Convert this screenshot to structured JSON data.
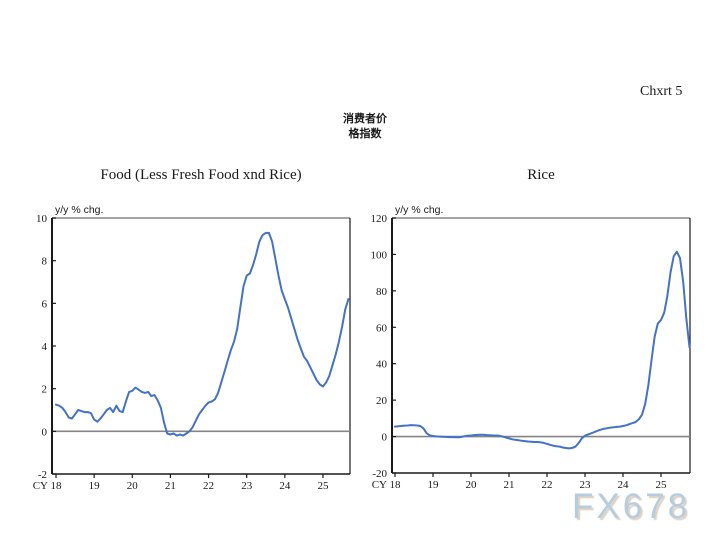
{
  "page": {
    "corner_label": "Chxrt 5",
    "header_line1": "消费者价",
    "header_line2": "格指数",
    "watermark": "FX678",
    "line_color": "#4472C4",
    "axis_color": "#1a1a1a",
    "gridline_color": "#858585"
  },
  "chart_data": [
    {
      "type": "line",
      "title": "Food (Less Fresh Food xnd Rice)",
      "unit_label": "y/y % chg.",
      "x_axis_prefix": "CY",
      "x_tick_labels": [
        "18",
        "19",
        "20",
        "21",
        "22",
        "23",
        "24",
        "25"
      ],
      "y_tick_values": [
        10,
        8,
        6,
        4,
        2,
        0,
        -2
      ],
      "ylim": [
        -2,
        10
      ],
      "x_start_year": 2018,
      "frequency": "monthly",
      "legend": "none",
      "grid": "zero-line-only",
      "values": [
        1.25,
        1.2,
        1.1,
        0.9,
        0.65,
        0.6,
        0.8,
        1.0,
        0.95,
        0.9,
        0.9,
        0.85,
        0.55,
        0.45,
        0.6,
        0.8,
        1.0,
        1.1,
        0.9,
        1.2,
        0.95,
        0.9,
        1.4,
        1.85,
        1.9,
        2.05,
        1.95,
        1.85,
        1.8,
        1.85,
        1.65,
        1.7,
        1.45,
        1.1,
        0.4,
        -0.1,
        -0.15,
        -0.1,
        -0.2,
        -0.15,
        -0.2,
        -0.1,
        0.0,
        0.2,
        0.5,
        0.8,
        1.0,
        1.2,
        1.35,
        1.4,
        1.5,
        1.8,
        2.3,
        2.8,
        3.3,
        3.8,
        4.2,
        4.8,
        5.8,
        6.8,
        7.3,
        7.4,
        7.8,
        8.3,
        8.9,
        9.2,
        9.3,
        9.3,
        8.9,
        8.1,
        7.3,
        6.6,
        6.2,
        5.8,
        5.3,
        4.8,
        4.3,
        3.9,
        3.5,
        3.3,
        3.0,
        2.7,
        2.4,
        2.2,
        2.1,
        2.3,
        2.6,
        3.1,
        3.6,
        4.2,
        4.9,
        5.7,
        6.2
      ]
    },
    {
      "type": "line",
      "title": "Rice",
      "unit_label": "y/y % chg.",
      "x_axis_prefix": "CY",
      "x_tick_labels": [
        "18",
        "19",
        "20",
        "21",
        "22",
        "23",
        "24",
        "25"
      ],
      "y_tick_values": [
        120,
        100,
        80,
        60,
        40,
        20,
        0,
        -20
      ],
      "ylim": [
        -20,
        120
      ],
      "x_start_year": 2018,
      "frequency": "monthly",
      "legend": "none",
      "grid": "zero-line-only",
      "values": [
        5.5,
        5.7,
        5.8,
        6.0,
        6.1,
        6.3,
        6.2,
        6.1,
        5.8,
        4.5,
        1.8,
        0.7,
        0.3,
        0.1,
        0.0,
        -0.1,
        -0.2,
        -0.3,
        -0.3,
        -0.4,
        -0.4,
        -0.2,
        0.2,
        0.5,
        0.6,
        0.8,
        0.9,
        1.0,
        1.0,
        0.8,
        0.7,
        0.6,
        0.6,
        0.4,
        0.0,
        -0.5,
        -1.0,
        -1.5,
        -1.8,
        -2.0,
        -2.3,
        -2.5,
        -2.7,
        -2.8,
        -3.0,
        -3.0,
        -3.2,
        -3.5,
        -4.0,
        -4.5,
        -5.0,
        -5.3,
        -5.5,
        -6.0,
        -6.3,
        -6.5,
        -6.2,
        -5.5,
        -3.5,
        -1.0,
        0.5,
        1.2,
        1.8,
        2.5,
        3.2,
        3.8,
        4.3,
        4.6,
        4.9,
        5.1,
        5.3,
        5.5,
        5.8,
        6.2,
        6.8,
        7.4,
        8.0,
        9.5,
        12,
        18,
        28,
        42,
        55,
        62,
        64,
        68,
        77,
        90,
        99,
        101.5,
        98,
        85,
        65,
        49
      ]
    }
  ]
}
